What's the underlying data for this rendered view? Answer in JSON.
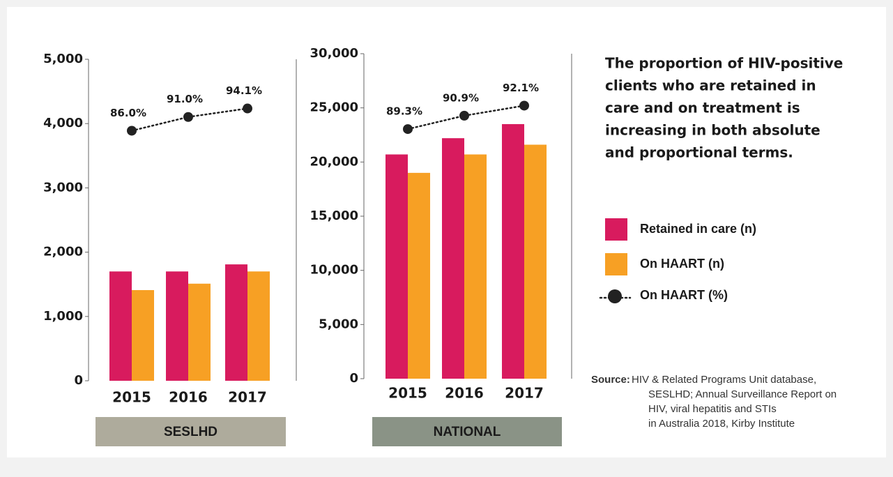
{
  "chart_data": [
    {
      "type": "bar",
      "label": "SESLHD",
      "categories": [
        "2015",
        "2016",
        "2017"
      ],
      "series": [
        {
          "name": "Retained in care (n)",
          "color": "#d81b5e",
          "values": [
            1700,
            1700,
            1810
          ]
        },
        {
          "name": "On HAART (n)",
          "color": "#f7a024",
          "values": [
            1410,
            1510,
            1700
          ]
        },
        {
          "name": "On HAART (%)",
          "color": "#222222",
          "type": "line",
          "axis": "y2",
          "values": [
            86.0,
            91.0,
            94.1
          ],
          "value_labels": [
            "86.0%",
            "91.0%",
            "94.1%"
          ]
        }
      ],
      "ylim": [
        0,
        5000
      ],
      "yticks": [
        0,
        {
          "value": 1000,
          "label": "1,000"
        },
        {
          "value": 2000,
          "label": "2,000"
        },
        {
          "value": 3000,
          "label": "3,000"
        },
        {
          "value": 4000,
          "label": "4,000"
        },
        {
          "value": 5000,
          "label": "5,000"
        }
      ],
      "y2lim": [
        -5,
        112
      ]
    },
    {
      "type": "bar",
      "label": "NATIONAL",
      "categories": [
        "2015",
        "2016",
        "2017"
      ],
      "series": [
        {
          "name": "Retained in care (n)",
          "color": "#d81b5e",
          "values": [
            20700,
            22200,
            23500
          ]
        },
        {
          "name": "On HAART (n)",
          "color": "#f7a024",
          "values": [
            19000,
            20700,
            21600
          ]
        },
        {
          "name": "On HAART (%)",
          "color": "#222222",
          "type": "line",
          "axis": "y2",
          "values": [
            89.3,
            90.9,
            92.1
          ],
          "value_labels": [
            "89.3%",
            "90.9%",
            "92.1%"
          ]
        }
      ],
      "ylim": [
        0,
        30000
      ],
      "yticks": [
        0,
        {
          "value": 5000,
          "label": "5,000"
        },
        {
          "value": 10000,
          "label": "10,000"
        },
        {
          "value": 15000,
          "label": "15,000"
        },
        {
          "value": 20000,
          "label": "20,000"
        },
        {
          "value": 25000,
          "label": "25,000"
        },
        {
          "value": 30000,
          "label": "30,000"
        }
      ],
      "y2lim": [
        59.5,
        98.3
      ]
    }
  ],
  "description": [
    "The proportion of HIV-positive",
    "clients who are retained in",
    "care and on treatment is",
    "increasing in both absolute",
    "and proportional terms."
  ],
  "source": {
    "label": "Source:",
    "lines": [
      "HIV & Related Programs Unit database,",
      "SESLHD; Annual Surveillance Report on",
      "HIV, viral hepatitis and STIs",
      "in Australia 2018, Kirby Institute"
    ]
  }
}
